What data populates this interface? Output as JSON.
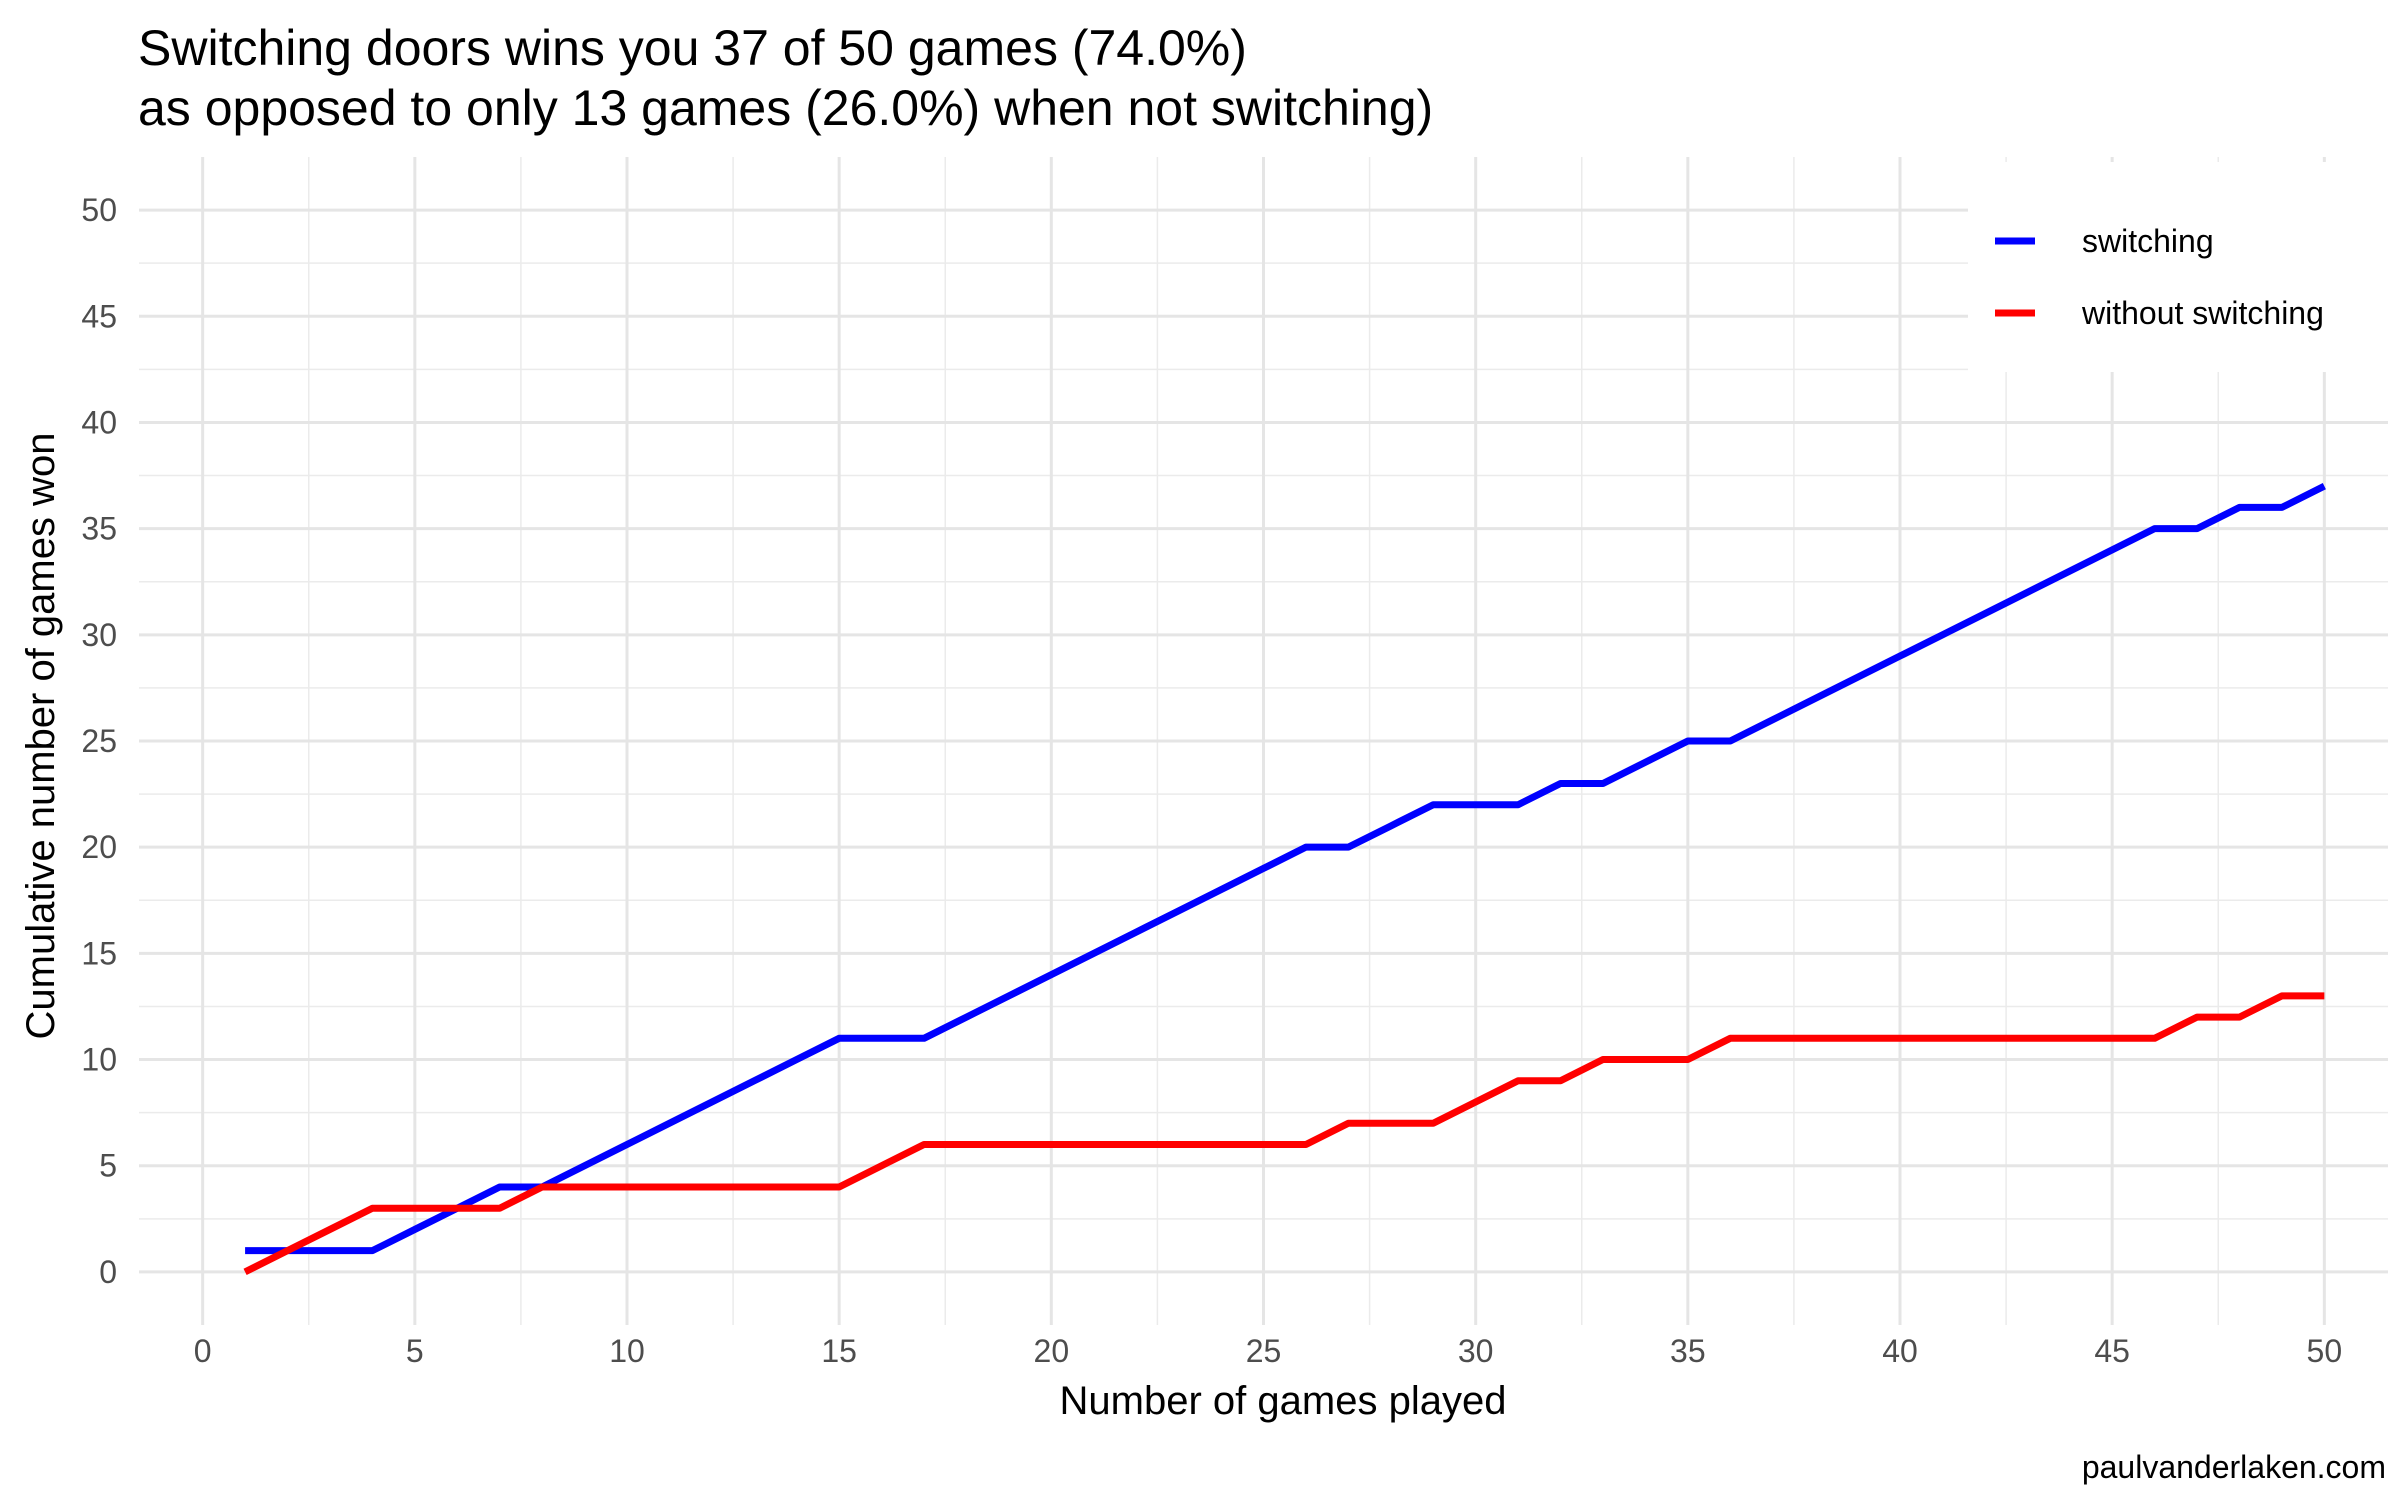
{
  "chart_data": {
    "type": "line",
    "title_lines": [
      "Switching doors wins you 37 of 50 games (74.0%)",
      "as opposed to only 13 games (26.0%) when not switching)"
    ],
    "xlabel": "Number of games played",
    "ylabel": "Cumulative number of games won",
    "xlim": [
      -1.5,
      51.5
    ],
    "ylim": [
      -2.5,
      52.5
    ],
    "x_ticks": [
      0,
      5,
      10,
      15,
      20,
      25,
      30,
      35,
      40,
      45,
      50
    ],
    "y_ticks": [
      0,
      5,
      10,
      15,
      20,
      25,
      30,
      35,
      40,
      45,
      50
    ],
    "grid": true,
    "legend_position": "top-right",
    "x": [
      1,
      2,
      3,
      4,
      5,
      6,
      7,
      8,
      9,
      10,
      11,
      12,
      13,
      14,
      15,
      16,
      17,
      18,
      19,
      20,
      21,
      22,
      23,
      24,
      25,
      26,
      27,
      28,
      29,
      30,
      31,
      32,
      33,
      34,
      35,
      36,
      37,
      38,
      39,
      40,
      41,
      42,
      43,
      44,
      45,
      46,
      47,
      48,
      49,
      50
    ],
    "series": [
      {
        "name": "switching",
        "color": "#0000ff",
        "values": [
          1,
          1,
          1,
          1,
          2,
          3,
          4,
          4,
          5,
          6,
          7,
          8,
          9,
          10,
          11,
          11,
          11,
          12,
          13,
          14,
          15,
          16,
          17,
          18,
          19,
          20,
          20,
          21,
          22,
          22,
          22,
          23,
          23,
          24,
          25,
          25,
          26,
          27,
          28,
          29,
          30,
          31,
          32,
          33,
          34,
          35,
          35,
          36,
          36,
          37
        ]
      },
      {
        "name": "without switching",
        "color": "#ff0000",
        "values": [
          0,
          1,
          2,
          3,
          3,
          3,
          3,
          4,
          4,
          4,
          4,
          4,
          4,
          4,
          4,
          5,
          6,
          6,
          6,
          6,
          6,
          6,
          6,
          6,
          6,
          6,
          7,
          7,
          7,
          8,
          9,
          9,
          10,
          10,
          10,
          11,
          11,
          11,
          11,
          11,
          11,
          11,
          11,
          11,
          11,
          11,
          12,
          12,
          13,
          13
        ]
      }
    ],
    "caption": "paulvanderlaken.com"
  }
}
